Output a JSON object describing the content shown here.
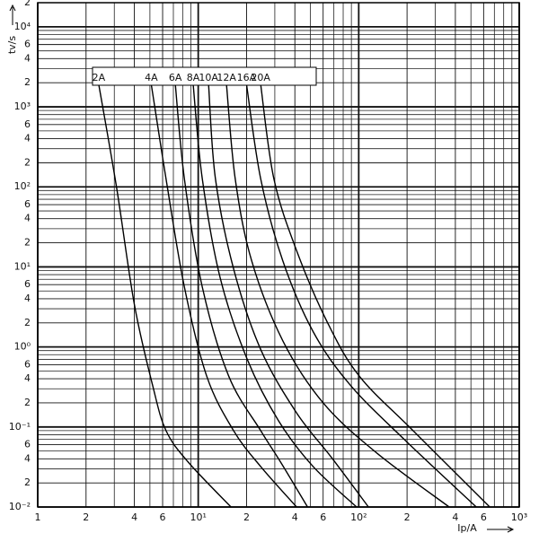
{
  "chart_data": {
    "type": "line",
    "x_label": "Ip/A",
    "y_label": "tv/s",
    "x_log": true,
    "y_log": true,
    "grid": true,
    "xlim": [
      1,
      1000
    ],
    "ylim": [
      0.01,
      20000
    ],
    "xticks": [
      1,
      2,
      4,
      6,
      {
        "value": 10,
        "label": "10¹"
      },
      {
        "value": 20,
        "label": "2"
      },
      {
        "value": 40,
        "label": "4"
      },
      {
        "value": 60,
        "label": "6"
      },
      {
        "value": 100,
        "label": "10²"
      },
      {
        "value": 200,
        "label": "2"
      },
      {
        "value": 400,
        "label": "4"
      },
      {
        "value": 600,
        "label": "6"
      },
      {
        "value": 1000,
        "label": "10³"
      }
    ],
    "yticks": [
      {
        "value": 0.01,
        "label": "10⁻²"
      },
      {
        "value": 0.02,
        "label": "2"
      },
      {
        "value": 0.04,
        "label": "4"
      },
      {
        "value": 0.06,
        "label": "6"
      },
      {
        "value": 0.1,
        "label": "10⁻¹"
      },
      {
        "value": 0.2,
        "label": "2"
      },
      {
        "value": 0.4,
        "label": "4"
      },
      {
        "value": 0.6,
        "label": "6"
      },
      {
        "value": 1,
        "label": "10⁰"
      },
      2,
      4,
      6,
      {
        "value": 10,
        "label": "10¹"
      },
      {
        "value": 20,
        "label": "2"
      },
      {
        "value": 40,
        "label": "4"
      },
      {
        "value": 60,
        "label": "6"
      },
      {
        "value": 100,
        "label": "10²"
      },
      {
        "value": 200,
        "label": "2"
      },
      {
        "value": 400,
        "label": "4"
      },
      {
        "value": 600,
        "label": "6"
      },
      {
        "value": 1000,
        "label": "10³"
      },
      {
        "value": 2000,
        "label": "2"
      },
      {
        "value": 4000,
        "label": "4"
      },
      {
        "value": 6000,
        "label": "6"
      },
      {
        "value": 10000,
        "label": "10⁴"
      },
      {
        "value": 20000,
        "label": "2"
      }
    ],
    "series": [
      {
        "name": "2A",
        "color": "#000000",
        "x": [
          2.4,
          3.1,
          4.0,
          5.2,
          6.3,
          8.7,
          16
        ],
        "values": [
          1900,
          98,
          3.4,
          0.33,
          0.09,
          0.036,
          0.01
        ]
      },
      {
        "name": "4A",
        "color": "#000000",
        "x": [
          5.1,
          6.3,
          8.2,
          11.3,
          16.6,
          24.5,
          41
        ],
        "values": [
          1900,
          126,
          5.6,
          0.43,
          0.09,
          0.032,
          0.01
        ]
      },
      {
        "name": "6A",
        "color": "#000000",
        "x": [
          7.2,
          8.2,
          10.6,
          15.5,
          24.5,
          33,
          48
        ],
        "values": [
          1900,
          126,
          5.6,
          0.43,
          0.09,
          0.035,
          0.01
        ]
      },
      {
        "name": "8A",
        "color": "#000000",
        "x": [
          9.3,
          10.6,
          13.7,
          20.2,
          31.6,
          52,
          97
        ],
        "values": [
          1900,
          126,
          7.3,
          0.7,
          0.12,
          0.032,
          0.01
        ]
      },
      {
        "name": "10A",
        "color": "#000000",
        "x": [
          11.6,
          12.8,
          16.6,
          24.5,
          41,
          68,
          115
        ],
        "values": [
          1900,
          126,
          9.5,
          0.93,
          0.15,
          0.041,
          0.01
        ]
      },
      {
        "name": "12A",
        "color": "#000000",
        "x": [
          15,
          17,
          21.5,
          33.6,
          60,
          130,
          366
        ],
        "values": [
          1900,
          126,
          12,
          1.2,
          0.2,
          0.047,
          0.01
        ]
      },
      {
        "name": "16A",
        "color": "#000000",
        "x": [
          20,
          24.5,
          33.6,
          52,
          89,
          192,
          540
        ],
        "values": [
          1900,
          126,
          12,
          1.55,
          0.33,
          0.07,
          0.01
        ]
      },
      {
        "name": "20A",
        "color": "#000000",
        "x": [
          24.5,
          29.6,
          41,
          64,
          101,
          218,
          655
        ],
        "values": [
          1900,
          126,
          16,
          2,
          0.43,
          0.09,
          0.01
        ]
      }
    ]
  }
}
